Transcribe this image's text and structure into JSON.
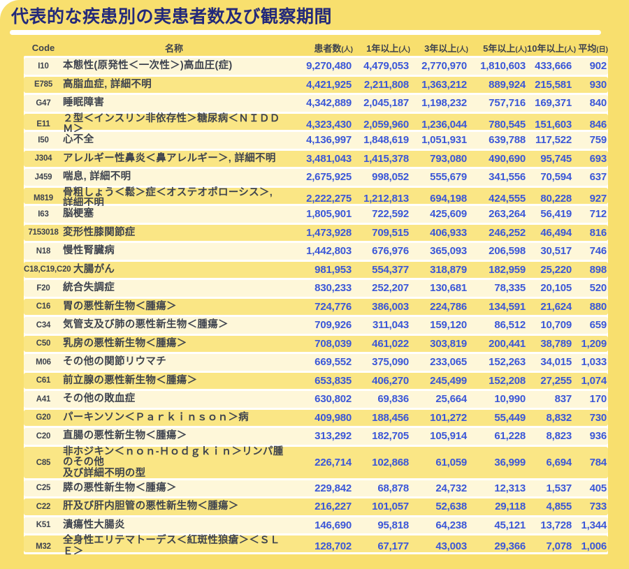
{
  "title": "代表的な疾患別の実患者数及び観察期間",
  "colors": {
    "background": "#F8DF6E",
    "row_yellow": "#FAE685",
    "row_cream": "#FEF7D9",
    "title_navy": "#23297A",
    "number_blue": "#3B57D8",
    "text_dark": "#3E434E",
    "separator_white": "#FFFFFF"
  },
  "chart_data": {
    "type": "table",
    "title": "代表的な疾患別の実患者数及び観察期間",
    "columns": [
      {
        "label": "Code",
        "unit": ""
      },
      {
        "label": "名称",
        "unit": ""
      },
      {
        "label": "患者数",
        "unit": "(人)"
      },
      {
        "label": "1年以上",
        "unit": "(人)"
      },
      {
        "label": "3年以上",
        "unit": "(人)"
      },
      {
        "label": "5年以上",
        "unit": "(人)"
      },
      {
        "label": "10年以上",
        "unit": "(人)"
      },
      {
        "label": "平均",
        "unit": "(日)"
      }
    ],
    "rows": [
      {
        "code": "I10",
        "name": "本態性(原発性＜一次性＞)高血圧(症)",
        "values": [
          "9,270,480",
          "4,479,053",
          "2,770,970",
          "1,810,603",
          "433,666",
          "902"
        ]
      },
      {
        "code": "E785",
        "name": "高脂血症, 詳細不明",
        "values": [
          "4,421,925",
          "2,211,808",
          "1,363,212",
          "889,924",
          "215,581",
          "930"
        ]
      },
      {
        "code": "G47",
        "name": "睡眠障害",
        "values": [
          "4,342,889",
          "2,045,187",
          "1,198,232",
          "757,716",
          "169,371",
          "840"
        ]
      },
      {
        "code": "E11",
        "name": "２型＜インスリン非依存性＞糖尿病＜ＮＩＤＤＭ＞",
        "values": [
          "4,323,430",
          "2,059,960",
          "1,236,044",
          "780,545",
          "151,603",
          "846"
        ]
      },
      {
        "code": "I50",
        "name": "心不全",
        "values": [
          "4,136,997",
          "1,848,619",
          "1,051,931",
          "639,788",
          "117,522",
          "759"
        ]
      },
      {
        "code": "J304",
        "name": "アレルギー性鼻炎＜鼻アレルギー＞, 詳細不明",
        "values": [
          "3,481,043",
          "1,415,378",
          "793,080",
          "490,690",
          "95,745",
          "693"
        ]
      },
      {
        "code": "J459",
        "name": "喘息, 詳細不明",
        "values": [
          "2,675,925",
          "998,052",
          "555,679",
          "341,556",
          "70,594",
          "637"
        ]
      },
      {
        "code": "M819",
        "name": "骨粗しょう＜鬆＞症＜オステオポローシス＞, 詳細不明",
        "values": [
          "2,222,275",
          "1,212,813",
          "694,198",
          "424,555",
          "80,228",
          "927"
        ]
      },
      {
        "code": "I63",
        "name": "脳梗塞",
        "values": [
          "1,805,901",
          "722,592",
          "425,609",
          "263,264",
          "56,419",
          "712"
        ]
      },
      {
        "code": "7153018",
        "name": "変形性膝関節症",
        "values": [
          "1,473,928",
          "709,515",
          "406,933",
          "246,252",
          "46,494",
          "816"
        ]
      },
      {
        "code": "N18",
        "name": "慢性腎臓病",
        "values": [
          "1,442,803",
          "676,976",
          "365,093",
          "206,598",
          "30,517",
          "746"
        ]
      },
      {
        "code": "C18,C19,C20",
        "name": "大腸がん",
        "values": [
          "981,953",
          "554,377",
          "318,879",
          "182,959",
          "25,220",
          "898"
        ]
      },
      {
        "code": "F20",
        "name": "統合失調症",
        "values": [
          "830,233",
          "252,207",
          "130,681",
          "78,335",
          "20,105",
          "520"
        ]
      },
      {
        "code": "C16",
        "name": "胃の悪性新生物＜腫瘍＞",
        "values": [
          "724,776",
          "386,003",
          "224,786",
          "134,591",
          "21,624",
          "880"
        ]
      },
      {
        "code": "C34",
        "name": "気管支及び肺の悪性新生物＜腫瘍＞",
        "values": [
          "709,926",
          "311,043",
          "159,120",
          "86,512",
          "10,709",
          "659"
        ]
      },
      {
        "code": "C50",
        "name": "乳房の悪性新生物＜腫瘍＞",
        "values": [
          "708,039",
          "461,022",
          "303,819",
          "200,441",
          "38,789",
          "1,209"
        ]
      },
      {
        "code": "M06",
        "name": "その他の関節リウマチ",
        "values": [
          "669,552",
          "375,090",
          "233,065",
          "152,263",
          "34,015",
          "1,033"
        ]
      },
      {
        "code": "C61",
        "name": "前立腺の悪性新生物＜腫瘍＞",
        "values": [
          "653,835",
          "406,270",
          "245,499",
          "152,208",
          "27,255",
          "1,074"
        ]
      },
      {
        "code": "A41",
        "name": "その他の敗血症",
        "values": [
          "630,802",
          "69,836",
          "25,664",
          "10,990",
          "837",
          "170"
        ]
      },
      {
        "code": "G20",
        "name": "パーキンソン＜Ｐａｒｋｉｎｓｏｎ＞病",
        "values": [
          "409,980",
          "188,456",
          "101,272",
          "55,449",
          "8,832",
          "730"
        ]
      },
      {
        "code": "C20",
        "name": "直腸の悪性新生物＜腫瘍＞",
        "values": [
          "313,292",
          "182,705",
          "105,914",
          "61,228",
          "8,823",
          "936"
        ]
      },
      {
        "code": "C85",
        "name": "非ホジキン＜ｎｏｎ‐Ｈｏｄｇｋｉｎ＞リンパ腫のその他\n及び詳細不明の型",
        "values": [
          "226,714",
          "102,868",
          "61,059",
          "36,999",
          "6,694",
          "784"
        ]
      },
      {
        "code": "C25",
        "name": "膵の悪性新生物＜腫瘍＞",
        "values": [
          "229,842",
          "68,878",
          "24,732",
          "12,313",
          "1,537",
          "405"
        ]
      },
      {
        "code": "C22",
        "name": "肝及び肝内胆管の悪性新生物＜腫瘍＞",
        "values": [
          "216,227",
          "101,057",
          "52,638",
          "29,118",
          "4,855",
          "733"
        ]
      },
      {
        "code": "K51",
        "name": "潰瘍性大腸炎",
        "values": [
          "146,690",
          "95,818",
          "64,238",
          "45,121",
          "13,728",
          "1,344"
        ]
      },
      {
        "code": "M32",
        "name": "全身性エリテマトーデス＜紅斑性狼瘡＞＜ＳＬＥ＞",
        "values": [
          "128,702",
          "67,177",
          "43,003",
          "29,366",
          "7,078",
          "1,006"
        ]
      }
    ]
  }
}
